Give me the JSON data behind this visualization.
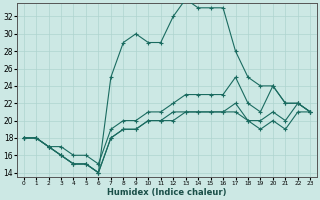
{
  "xlabel": "Humidex (Indice chaleur)",
  "background_color": "#cce8e4",
  "grid_color": "#afd4cf",
  "line_color": "#1a6b60",
  "xlim": [
    -0.5,
    23.5
  ],
  "ylim": [
    13.5,
    33.5
  ],
  "yticks": [
    14,
    16,
    18,
    20,
    22,
    24,
    26,
    28,
    30,
    32
  ],
  "xticks": [
    0,
    1,
    2,
    3,
    4,
    5,
    6,
    7,
    8,
    9,
    10,
    11,
    12,
    13,
    14,
    15,
    16,
    17,
    18,
    19,
    20,
    21,
    22,
    23
  ],
  "xtick_labels": [
    "0",
    "1",
    "2",
    "3",
    "4",
    "5",
    "6",
    "7",
    "8",
    "9",
    "10",
    "11",
    "12",
    "13",
    "14",
    "15",
    "16",
    "17",
    "18",
    "19",
    "20",
    "21",
    "22",
    "23"
  ],
  "line4_x": [
    0,
    1,
    2,
    3,
    4,
    5,
    6,
    7,
    8,
    9,
    10,
    11,
    12,
    13,
    14,
    15,
    16,
    17,
    18,
    19,
    20,
    21,
    22,
    23
  ],
  "line4_y": [
    18,
    18,
    17,
    16,
    15,
    15,
    14,
    25,
    29,
    30,
    29,
    29,
    32,
    34,
    33,
    33,
    33,
    28,
    25,
    24,
    24,
    22,
    22,
    21
  ],
  "line1_x": [
    0,
    1,
    2,
    3,
    4,
    5,
    6,
    7,
    8,
    9,
    10,
    11,
    12,
    13,
    14,
    15,
    16,
    17,
    18,
    19,
    20,
    21,
    22,
    23
  ],
  "line1_y": [
    18,
    18,
    17,
    17,
    16,
    16,
    15,
    19,
    20,
    20,
    21,
    21,
    22,
    23,
    23,
    23,
    23,
    25,
    22,
    21,
    24,
    22,
    22,
    21
  ],
  "line2_x": [
    0,
    1,
    2,
    3,
    4,
    5,
    6,
    7,
    8,
    9,
    10,
    11,
    12,
    13,
    14,
    15,
    16,
    17,
    18,
    19,
    20,
    21,
    22,
    23
  ],
  "line2_y": [
    18,
    18,
    17,
    16,
    15,
    15,
    14,
    18,
    19,
    19,
    20,
    20,
    21,
    21,
    21,
    21,
    21,
    22,
    20,
    20,
    21,
    20,
    22,
    21
  ],
  "line3_x": [
    0,
    1,
    2,
    3,
    4,
    5,
    6,
    7,
    8,
    9,
    10,
    11,
    12,
    13,
    14,
    15,
    16,
    17,
    18,
    19,
    20,
    21,
    22,
    23
  ],
  "line3_y": [
    18,
    18,
    17,
    16,
    15,
    15,
    14,
    18,
    19,
    19,
    20,
    20,
    20,
    21,
    21,
    21,
    21,
    21,
    20,
    19,
    20,
    19,
    21,
    21
  ]
}
